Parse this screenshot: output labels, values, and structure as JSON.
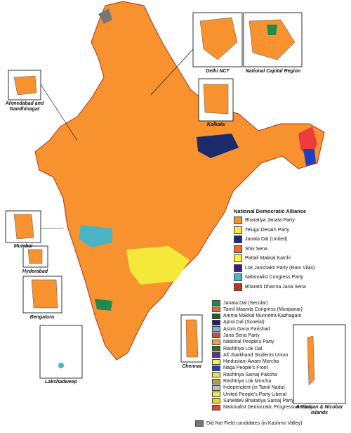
{
  "insets": [
    "Delhi NCT",
    "National Capital Region",
    "Ahmedabad and Gandhinagar",
    "Kolkata",
    "Mumbai",
    "Hyderabad",
    "Bengaluru",
    "Chennai",
    "Lakshadweep",
    "Andaman & Nicobar Islands"
  ],
  "legend": {
    "title": "National Democratic Alliance",
    "items": [
      {
        "label": "Bharatiya Janata Party",
        "color": "#f7922f"
      },
      {
        "label": "Telugu Desam Party",
        "color": "#f5e83a"
      },
      {
        "label": "Janata Dal (United)",
        "color": "#1b2a6b"
      },
      {
        "label": "Shiv Sena",
        "color": "#f06c24"
      },
      {
        "label": "Pattali Makkal Katchi",
        "color": "#f9f23e"
      },
      {
        "label": "Lok Janshakti Party (Ram Vilas)",
        "color": "#3a1f7a"
      },
      {
        "label": "Nationalist Congress Party",
        "color": "#4ab3c4"
      },
      {
        "label": "Bharath Dharma Jana Sena",
        "color": "#c0341d"
      }
    ]
  },
  "legend2": {
    "items": [
      {
        "label": "Janata Dal (Secular)",
        "color": "#1f8a4c"
      },
      {
        "label": "Tamil Maanila Congress (Moopanar)",
        "color": "#e56a2a"
      },
      {
        "label": "Amma Makkal Munnetra Kazhagam",
        "color": "#1b5e2b"
      },
      {
        "label": "Apna Dal (Sonelal)",
        "color": "#2a1a6e"
      },
      {
        "label": "Asom Gana Parishad",
        "color": "#8fa8d8"
      },
      {
        "label": "Jana Sena Party",
        "color": "#c0562a"
      },
      {
        "label": "National People's Party",
        "color": "#f2a33a"
      },
      {
        "label": "Rashtriya Lok Dal",
        "color": "#2f6b2a"
      },
      {
        "label": "All Jharkhand Students Union",
        "color": "#6a2aa0"
      },
      {
        "label": "Hindustani Awam Morcha",
        "color": "#f4ee5a"
      },
      {
        "label": "Naga People's Front",
        "color": "#1f3fbf"
      },
      {
        "label": "Rashtriya Samaj Paksha",
        "color": "#e9e33a"
      },
      {
        "label": "Rashtriya Lok Morcha",
        "color": "#b5a23a"
      },
      {
        "label": "Independent (in Tamil Nadu)",
        "color": "#bdbdbd"
      },
      {
        "label": "United People's Party Liberal",
        "color": "#f0e85a"
      },
      {
        "label": "Suheldev Bharatiya Samaj Party",
        "color": "#f5d21f"
      },
      {
        "label": "Nationalist Democratic Progressive Party",
        "color": "#ee3b3b"
      }
    ]
  },
  "excluded": {
    "label": "Did Not Field candidates (in Kashmir Valley)",
    "color": "#777777"
  }
}
